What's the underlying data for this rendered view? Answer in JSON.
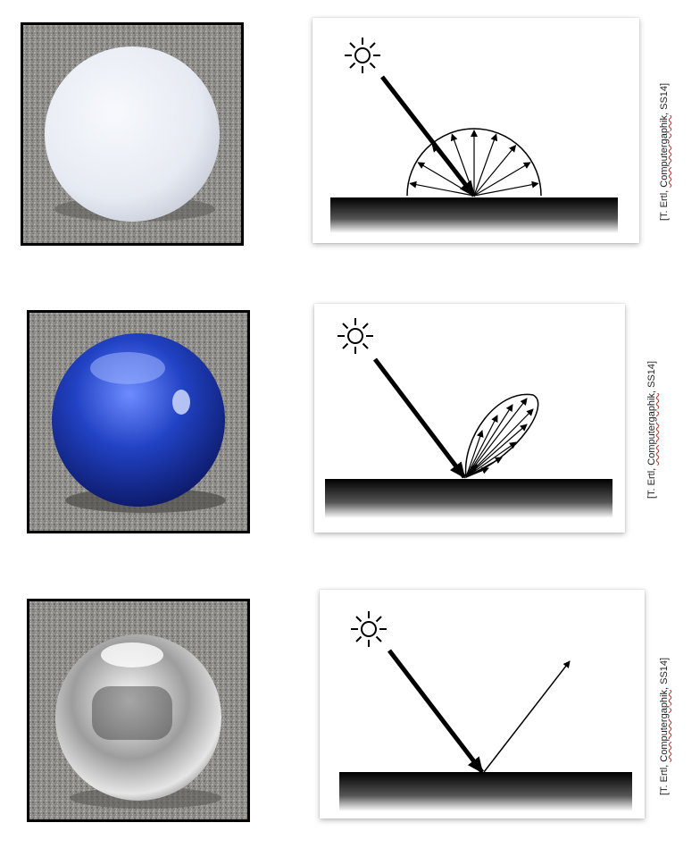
{
  "rows": [
    {
      "material": "diffuse",
      "citation": {
        "prefix": "[T. Ertl, ",
        "underlined": "Computergaphik",
        "suffix": ", SS14]"
      }
    },
    {
      "material": "glossy",
      "citation": {
        "prefix": "[T. Ertl, ",
        "underlined": "Computergaphik",
        "suffix": ", SS14]"
      }
    },
    {
      "material": "mirror",
      "citation": {
        "prefix": "[T. Ertl, ",
        "underlined": "Computergaphik",
        "suffix": ", SS14]"
      }
    }
  ],
  "icons": {
    "light_source": "sun-icon"
  },
  "colors": {
    "glossy_sphere": "#1f3fb0",
    "diffuse_sphere": "#eef2f8",
    "mirror_sphere": "#c8c8c8",
    "pavement": "#8a8a86"
  }
}
